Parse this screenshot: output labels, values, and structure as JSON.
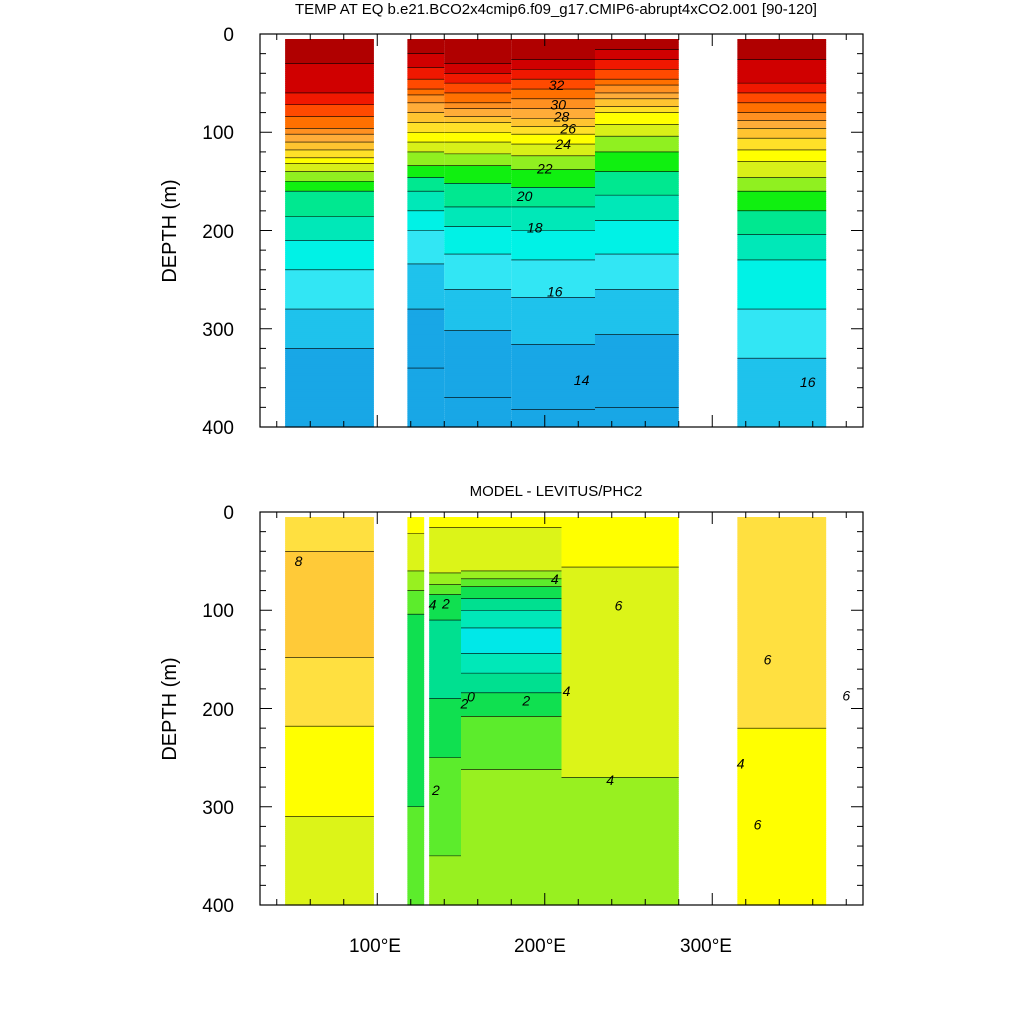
{
  "palette": {
    "temperature": [
      "#18a7e6",
      "#1fc2ec",
      "#32e6f4",
      "#00f2e6",
      "#00e8b8",
      "#00e890",
      "#10f010",
      "#90f020",
      "#d8f018",
      "#ffff00",
      "#ffe028",
      "#ffc430",
      "#ffac38",
      "#ff9020",
      "#ff7000",
      "#ff4a00",
      "#f01800",
      "#d00000",
      "#b00000"
    ],
    "anomaly": [
      "#00e8e8",
      "#00e8b8",
      "#00e090",
      "#10e050",
      "#5cec2c",
      "#98f020",
      "#dcf418",
      "#ffff00",
      "#ffe040",
      "#ffca38",
      "#ffb238",
      "#ff9a28",
      "#ff7a10",
      "#ff4010",
      "#e01808"
    ]
  },
  "chart_data": [
    {
      "type": "heatmap",
      "subtype": "filled-contour",
      "title": "TEMP AT EQ b.e21.BCO2x4cmip6.f09_g17.CMIP6-abrupt4xCO2.001 [90-120]",
      "xlabel": "",
      "ylabel": "DEPTH (m)",
      "x_range": [
        30,
        390
      ],
      "y_range": [
        0,
        400
      ],
      "y_reversed": true,
      "y_ticks": [
        "0",
        "100",
        "200",
        "300",
        "400"
      ],
      "x_ticks": [
        100,
        200,
        300
      ],
      "contour_labels": [
        {
          "text": "32",
          "x": 207,
          "y": 52
        },
        {
          "text": "30",
          "x": 208,
          "y": 72
        },
        {
          "text": "28",
          "x": 210,
          "y": 84
        },
        {
          "text": "26",
          "x": 214,
          "y": 96
        },
        {
          "text": "24",
          "x": 211,
          "y": 112
        },
        {
          "text": "22",
          "x": 200,
          "y": 137
        },
        {
          "text": "20",
          "x": 188,
          "y": 165
        },
        {
          "text": "18",
          "x": 194,
          "y": 197
        },
        {
          "text": "16",
          "x": 206,
          "y": 262
        },
        {
          "text": "14",
          "x": 222,
          "y": 352
        },
        {
          "text": "16",
          "x": 357,
          "y": 354
        }
      ],
      "series": [
        {
          "kind": "temperature",
          "interval": 1,
          "sections": [
            {
              "x0": 45,
              "x1": 98,
              "profile": [
                [
                  0,
                  33
                ],
                [
                  60,
                  31
                ],
                [
                  95,
                  28
                ],
                [
                  110,
                  26
                ],
                [
                  125,
                  24
                ],
                [
                  140,
                  22
                ],
                [
                  160,
                  20
                ],
                [
                  185,
                  19
                ],
                [
                  210,
                  18
                ],
                [
                  240,
                  17
                ],
                [
                  280,
                  16
                ],
                [
                  320,
                  15
                ],
                [
                  360,
                  14.5
                ],
                [
                  400,
                  14.2
                ]
              ]
            },
            {
              "x0": 118,
              "x1": 140,
              "profile": [
                [
                  0,
                  33
                ],
                [
                  20,
                  32
                ],
                [
                  40,
                  30.5
                ],
                [
                  55,
                  29
                ],
                [
                  70,
                  27
                ],
                [
                  90,
                  25
                ],
                [
                  120,
                  22
                ],
                [
                  160,
                  19
                ],
                [
                  200,
                  17
                ],
                [
                  240,
                  15.8
                ],
                [
                  280,
                  15
                ],
                [
                  340,
                  14
                ],
                [
                  400,
                  13.3
                ]
              ]
            },
            {
              "x0": 140,
              "x1": 180,
              "profile": [
                [
                  0,
                  33
                ],
                [
                  30,
                  32
                ],
                [
                  50,
                  30
                ],
                [
                  70,
                  28
                ],
                [
                  90,
                  25
                ],
                [
                  110,
                  23
                ],
                [
                  140,
                  20.5
                ],
                [
                  175,
                  19
                ],
                [
                  200,
                  17.8
                ],
                [
                  240,
                  16.5
                ],
                [
                  290,
                  15.2
                ],
                [
                  340,
                  14.3
                ],
                [
                  400,
                  13.7
                ]
              ]
            },
            {
              "x0": 180,
              "x1": 230,
              "profile": [
                [
                  0,
                  33
                ],
                [
                  25,
                  32
                ],
                [
                  45,
                  30
                ],
                [
                  65,
                  28
                ],
                [
                  85,
                  26
                ],
                [
                  105,
                  23.5
                ],
                [
                  130,
                  21.5
                ],
                [
                  155,
                  20
                ],
                [
                  185,
                  18.5
                ],
                [
                  230,
                  17
                ],
                [
                  280,
                  15.7
                ],
                [
                  340,
                  14.5
                ],
                [
                  400,
                  13.8
                ]
              ]
            },
            {
              "x0": 230,
              "x1": 280,
              "profile": [
                [
                  0,
                  33
                ],
                [
                  15,
                  32
                ],
                [
                  30,
                  30.5
                ],
                [
                  45,
                  29
                ],
                [
                  60,
                  27
                ],
                [
                  80,
                  24
                ],
                [
                  110,
                  21.5
                ],
                [
                  150,
                  19.5
                ],
                [
                  190,
                  18
                ],
                [
                  240,
                  16.5
                ],
                [
                  290,
                  15.3
                ],
                [
                  340,
                  14.4
                ],
                [
                  400,
                  13.8
                ]
              ]
            },
            {
              "x0": 315,
              "x1": 368,
              "profile": [
                [
                  0,
                  33
                ],
                [
                  50,
                  31
                ],
                [
                  80,
                  28
                ],
                [
                  105,
                  25
                ],
                [
                  130,
                  23
                ],
                [
                  160,
                  21
                ],
                [
                  190,
                  19.5
                ],
                [
                  230,
                  18
                ],
                [
                  280,
                  17
                ],
                [
                  330,
                  16
                ],
                [
                  400,
                  15.2
                ]
              ]
            }
          ]
        }
      ]
    },
    {
      "type": "heatmap",
      "subtype": "filled-contour",
      "title": "MODEL - LEVITUS/PHC2",
      "xlabel": "",
      "ylabel": "DEPTH (m)",
      "x_range": [
        30,
        390
      ],
      "y_range": [
        0,
        400
      ],
      "y_reversed": true,
      "y_ticks": [
        "0",
        "100",
        "200",
        "300",
        "400"
      ],
      "x_ticks": [
        100,
        200,
        300
      ],
      "x_tick_labels": [
        "100°E",
        "200°E",
        "300°E"
      ],
      "contour_labels": [
        {
          "text": "8",
          "x": 53,
          "y": 50
        },
        {
          "text": "4",
          "x": 206,
          "y": 68
        },
        {
          "text": "6",
          "x": 244,
          "y": 95
        },
        {
          "text": "2",
          "x": 141,
          "y": 93
        },
        {
          "text": "4",
          "x": 133,
          "y": 94
        },
        {
          "text": "0",
          "x": 156,
          "y": 188
        },
        {
          "text": "2",
          "x": 152,
          "y": 195
        },
        {
          "text": "2",
          "x": 189,
          "y": 192
        },
        {
          "text": "4",
          "x": 213,
          "y": 182
        },
        {
          "text": "4",
          "x": 239,
          "y": 273
        },
        {
          "text": "2",
          "x": 135,
          "y": 283
        },
        {
          "text": "6",
          "x": 333,
          "y": 150
        },
        {
          "text": "4",
          "x": 317,
          "y": 256
        },
        {
          "text": "6",
          "x": 327,
          "y": 318
        },
        {
          "text": "6",
          "x": 380,
          "y": 187
        }
      ],
      "series": [
        {
          "kind": "anomaly",
          "interval": 1,
          "sections": [
            {
              "x0": 45,
              "x1": 98,
              "profile": [
                [
                  0,
                  6.2
                ],
                [
                  40,
                  7
                ],
                [
                  80,
                  8
                ],
                [
                  120,
                  7.5
                ],
                [
                  160,
                  6.8
                ],
                [
                  200,
                  6.2
                ],
                [
                  260,
                  5.5
                ],
                [
                  320,
                  4.9
                ],
                [
                  400,
                  4.5
                ]
              ]
            },
            {
              "x0": 118,
              "x1": 128,
              "profile": [
                [
                  0,
                  5.4
                ],
                [
                  50,
                  4.5
                ],
                [
                  90,
                  2.5
                ],
                [
                  130,
                  1
                ],
                [
                  200,
                  1.5
                ],
                [
                  300,
                  2
                ],
                [
                  400,
                  2.4
                ]
              ]
            },
            {
              "x0": 131,
              "x1": 150,
              "profile": [
                [
                  0,
                  5.3
                ],
                [
                  60,
                  4.2
                ],
                [
                  90,
                  1.5
                ],
                [
                  130,
                  0.5
                ],
                [
                  190,
                  1
                ],
                [
                  250,
                  2
                ],
                [
                  300,
                  2.8
                ],
                [
                  400,
                  3.2
                ]
              ]
            },
            {
              "x0": 150,
              "x1": 210,
              "profile": [
                [
                  0,
                  5.2
                ],
                [
                  55,
                  4.5
                ],
                [
                  75,
                  2
                ],
                [
                  100,
                  0
                ],
                [
                  130,
                  -1.6
                ],
                [
                  155,
                  -0.5
                ],
                [
                  185,
                  1
                ],
                [
                  220,
                  2.5
                ],
                [
                  280,
                  3.2
                ],
                [
                  400,
                  3.4
                ]
              ]
            },
            {
              "x0": 210,
              "x1": 280,
              "profile": [
                [
                  0,
                  5.6
                ],
                [
                  50,
                  5.1
                ],
                [
                  80,
                  4.6
                ],
                [
                  130,
                  4.4
                ],
                [
                  200,
                  4.2
                ],
                [
                  270,
                  4
                ],
                [
                  400,
                  3.8
                ]
              ]
            },
            {
              "x0": 315,
              "x1": 368,
              "profile": [
                [
                  0,
                  6
                ],
                [
                  40,
                  6.6
                ],
                [
                  90,
                  6.8
                ],
                [
                  150,
                  6.5
                ],
                [
                  200,
                  6.1
                ],
                [
                  260,
                  5.8
                ],
                [
                  320,
                  5.5
                ],
                [
                  400,
                  5.3
                ]
              ]
            }
          ]
        }
      ]
    }
  ]
}
